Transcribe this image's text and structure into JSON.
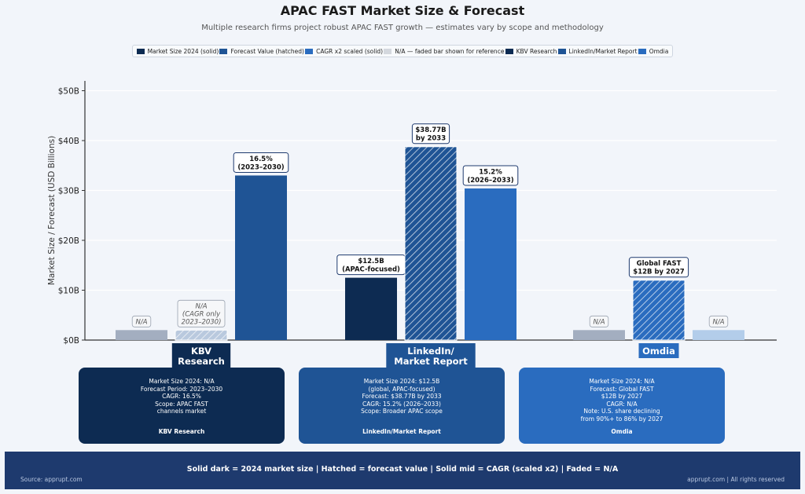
{
  "title": "APAC FAST Market Size & Forecast",
  "subtitle": "Multiple research firms project robust APAC FAST growth — estimates vary by scope and methodology",
  "legend": [
    {
      "label": "Market Size 2024 (solid)",
      "color": "#0d2b52",
      "pattern": "solid"
    },
    {
      "label": "Forecast Value (hatched)",
      "color": "#1f5495",
      "pattern": "solid"
    },
    {
      "label": "CAGR x2 scaled (solid)",
      "color": "#2a6cbf",
      "pattern": "solid"
    },
    {
      "label": "N/A — faded bar shown for reference",
      "color": "#d4d8de",
      "pattern": "solid"
    },
    {
      "label": "KBV Research",
      "color": "#0d2b52",
      "pattern": "solid"
    },
    {
      "label": "LinkedIn/Market Report",
      "color": "#1f5495",
      "pattern": "solid"
    },
    {
      "label": "Omdia",
      "color": "#2a6cbf",
      "pattern": "solid"
    }
  ],
  "chart_data": {
    "type": "bar",
    "ylabel": "Market Size / Forecast (USD Billions)",
    "ylim": [
      0,
      52
    ],
    "yticks": [
      0,
      10,
      20,
      30,
      40,
      50
    ],
    "ytick_labels": [
      "$0B",
      "$10B",
      "$20B",
      "$30B",
      "$40B",
      "$50B"
    ],
    "grid": true,
    "categories": [
      "KBV\nResearch",
      "LinkedIn/\nMarket Report",
      "Omdia"
    ],
    "series": [
      {
        "name": "Market Size 2024",
        "values": [
          2,
          12.5,
          2
        ],
        "colors": [
          "#a3aec0",
          "#0d2b52",
          "#a3aec0"
        ],
        "hatched": [
          false,
          false,
          false
        ],
        "labels": [
          "N/A",
          "$12.5B\n(APAC-focused)",
          "N/A"
        ],
        "label_style": [
          "na",
          "bold",
          "na"
        ]
      },
      {
        "name": "Forecast Value",
        "values": [
          2,
          38.77,
          12
        ],
        "colors": [
          "#b9c9de",
          "#1f5495",
          "#2a6cbf"
        ],
        "hatched": [
          true,
          true,
          true
        ],
        "labels": [
          "N/A\n(CAGR only\n2023–2030)",
          "$38.77B\nby 2033",
          "Global FAST\n$12B by 2027"
        ],
        "label_style": [
          "na",
          "bold",
          "bold"
        ]
      },
      {
        "name": "CAGR x2 scaled",
        "values": [
          33,
          30.4,
          2
        ],
        "colors": [
          "#1f5495",
          "#2a6cbf",
          "#b3cdea"
        ],
        "hatched": [
          false,
          false,
          false
        ],
        "labels": [
          "16.5%\n(2023–2030)",
          "15.2%\n(2026–2033)",
          "N/A"
        ],
        "label_style": [
          "bold",
          "bold",
          "na"
        ]
      }
    ],
    "category_colors": [
      "#0d2b52",
      "#1f5495",
      "#2a6cbf"
    ]
  },
  "cards": [
    {
      "text": "Market Size 2024: N/A\nForecast Period: 2023–2030\nCAGR: 16.5%\nScope: APAC FAST\nchannels market",
      "name": "KBV Research",
      "color": "#0d2b52"
    },
    {
      "text": "Market Size 2024: $12.5B\n(global, APAC-focused)\nForecast: $38.77B by 2033\nCAGR: 15.2% (2026–2033)\nScope: Broader APAC scope",
      "name": "LinkedIn/Market Report",
      "color": "#1f5495"
    },
    {
      "text": "Market Size 2024: N/A\nForecast: Global FAST\n$12B by 2027\nCAGR: N/A\nNote: U.S. share declining\nfrom 90%+ to 86% by 2027",
      "name": "Omdia",
      "color": "#2a6cbf"
    }
  ],
  "footer": {
    "main": "Solid dark = 2024 market size   |   Hatched = forecast value   |   Solid mid = CAGR (scaled x2)   |   Faded = N/A",
    "source": "Source: apprupt.com",
    "right": "apprupt.com  |  All rights reserved"
  }
}
